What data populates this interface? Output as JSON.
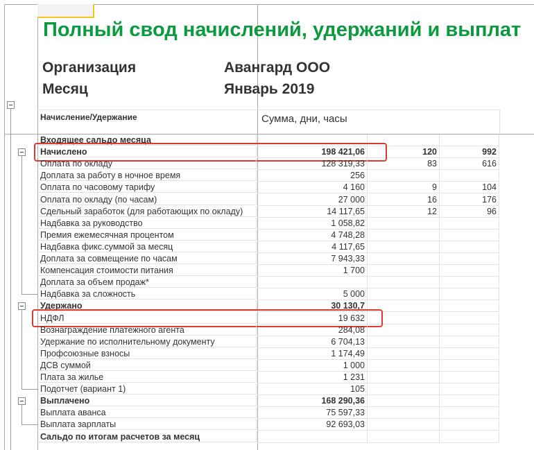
{
  "title": "Полный свод начислений, удержаний и выплат",
  "organization": {
    "label": "Организация",
    "value": "Авангард ООО"
  },
  "month": {
    "label": "Месяц",
    "value": "Январь 2019"
  },
  "columns": {
    "name": "Начисление/Удержание",
    "values": "Сумма, дни, часы"
  },
  "rows": [
    {
      "name": "Входящее сальдо месяца",
      "sum": "",
      "days": "",
      "hours": "",
      "bold": true
    },
    {
      "name": "Начислено",
      "sum": "198 421,06",
      "days": "120",
      "hours": "992",
      "bold": true,
      "group": true,
      "highlighted": true
    },
    {
      "name": "Оплата по окладу",
      "sum": "128 319,33",
      "days": "83",
      "hours": "616"
    },
    {
      "name": "Доплата за работу в ночное время",
      "sum": "256",
      "days": "",
      "hours": ""
    },
    {
      "name": "Оплата по часовому тарифу",
      "sum": "4 160",
      "days": "9",
      "hours": "104"
    },
    {
      "name": "Оплата по окладу (по часам)",
      "sum": "27 000",
      "days": "16",
      "hours": "176"
    },
    {
      "name": "Сдельный заработок (для работающих по окладу)",
      "sum": "14 117,65",
      "days": "12",
      "hours": "96"
    },
    {
      "name": "Надбавка за руководство",
      "sum": "1 058,82",
      "days": "",
      "hours": ""
    },
    {
      "name": "Премия ежемесячная процентом",
      "sum": "4 748,28",
      "days": "",
      "hours": ""
    },
    {
      "name": "Надбавка фикс.суммой за месяц",
      "sum": "4 117,65",
      "days": "",
      "hours": ""
    },
    {
      "name": "Доплата за совмещение по часам",
      "sum": "7 943,33",
      "days": "",
      "hours": ""
    },
    {
      "name": "Компенсация стоимости питания",
      "sum": "1 700",
      "days": "",
      "hours": ""
    },
    {
      "name": "Доплата за объем продаж*",
      "sum": "",
      "days": "",
      "hours": ""
    },
    {
      "name": "Надбавка за сложность",
      "sum": "5 000",
      "days": "",
      "hours": ""
    },
    {
      "name": "Удержано",
      "sum": "30 130,7",
      "days": "",
      "hours": "",
      "bold": true,
      "group": true
    },
    {
      "name": "НДФЛ",
      "sum": "19 632",
      "days": "",
      "hours": "",
      "highlighted": true
    },
    {
      "name": "Вознаграждение платежного агента",
      "sum": "284,08",
      "days": "",
      "hours": ""
    },
    {
      "name": "Удержание по исполнительному документу",
      "sum": "6 704,13",
      "days": "",
      "hours": ""
    },
    {
      "name": "Профсоюзные взносы",
      "sum": "1 174,49",
      "days": "",
      "hours": ""
    },
    {
      "name": "ДСВ суммой",
      "sum": "1 000",
      "days": "",
      "hours": ""
    },
    {
      "name": "Плата за жилье",
      "sum": "1 231",
      "days": "",
      "hours": ""
    },
    {
      "name": "Подотчет (вариант 1)",
      "sum": "105",
      "days": "",
      "hours": ""
    },
    {
      "name": "Выплачено",
      "sum": "168 290,36",
      "days": "",
      "hours": "",
      "bold": true,
      "group": true
    },
    {
      "name": "Выплата аванса",
      "sum": "75 597,33",
      "days": "",
      "hours": ""
    },
    {
      "name": "Выплата зарплаты",
      "sum": "92 693,03",
      "days": "",
      "hours": ""
    },
    {
      "name": "Сальдо по итогам расчетов за месяц",
      "sum": "",
      "days": "",
      "hours": "",
      "bold": true
    }
  ],
  "colors": {
    "title": "#0b9a3e",
    "highlight": "#e03a30",
    "selection": "#f5c518"
  }
}
